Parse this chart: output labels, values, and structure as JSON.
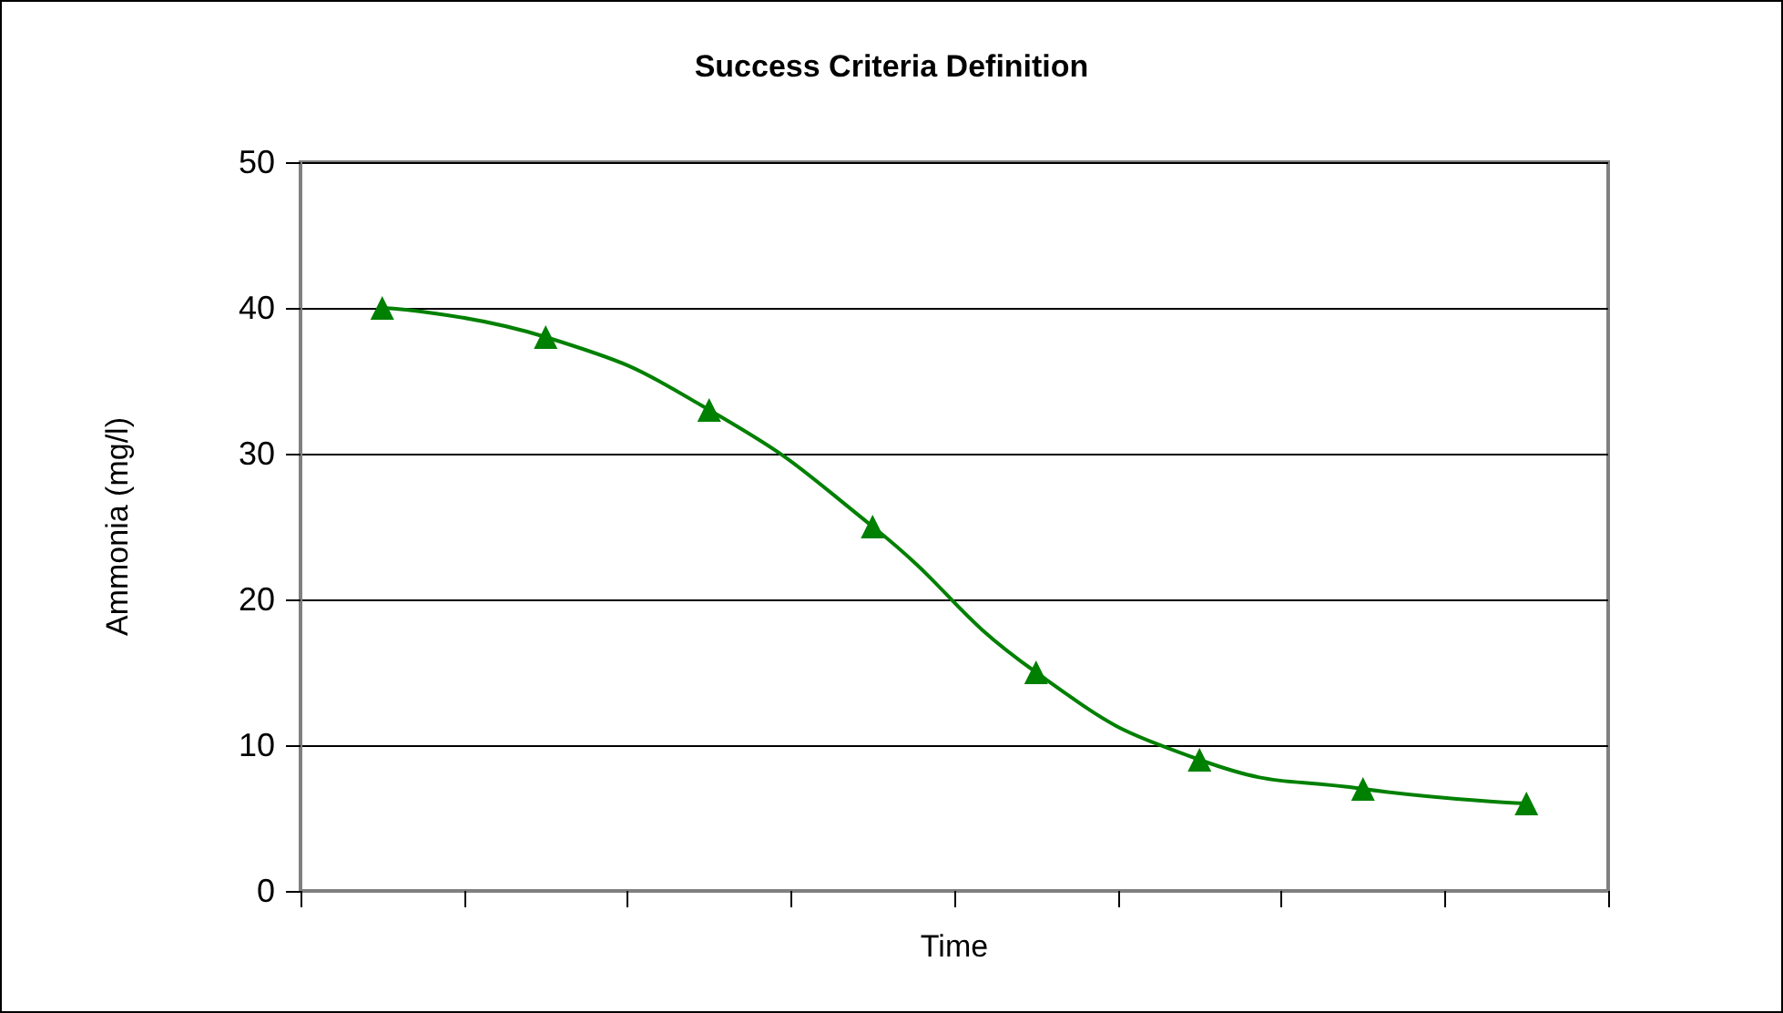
{
  "chart_data": {
    "type": "line",
    "title": "Success Criteria Definition",
    "xlabel": "Time",
    "ylabel": "Ammonia (mg/l)",
    "categories": [
      null,
      null,
      null,
      null,
      null,
      null,
      null,
      null
    ],
    "series": [
      {
        "color": "#008000",
        "values": [
          40,
          38,
          33,
          25,
          15,
          9,
          7,
          6
        ]
      }
    ],
    "ylim": [
      0,
      50
    ],
    "yticks": [
      0,
      10,
      20,
      30,
      40,
      50
    ],
    "grid": "y",
    "marker": "triangle",
    "line_style": "solid"
  }
}
